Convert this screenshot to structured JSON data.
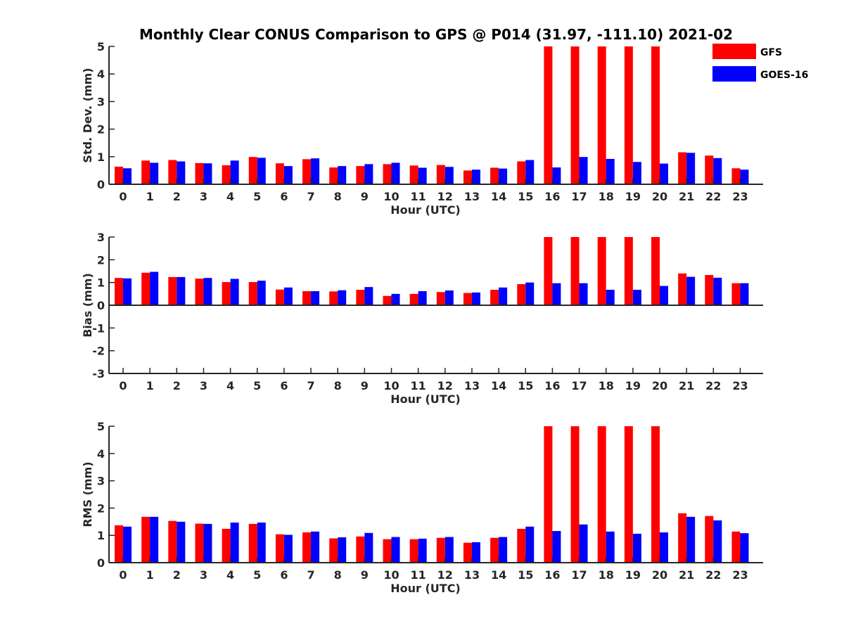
{
  "title": "Monthly Clear CONUS Comparison to GPS @ P014 (31.97, -111.10) 2021-02",
  "colors": {
    "GFS": "#ff0000",
    "GOES-16": "#0000ff",
    "axis": "#262626"
  },
  "legend": {
    "placement": "top-right",
    "entries": [
      "GFS",
      "GOES-16"
    ]
  },
  "chart_data": [
    {
      "type": "bar",
      "xlabel": "Hour (UTC)",
      "ylabel": "Std. Dev. (mm)",
      "ylim": [
        0,
        5
      ],
      "yticks": [
        0,
        1,
        2,
        3,
        4,
        5
      ],
      "categories": [
        "0",
        "1",
        "2",
        "3",
        "4",
        "5",
        "6",
        "7",
        "8",
        "9",
        "10",
        "11",
        "12",
        "13",
        "14",
        "15",
        "16",
        "17",
        "18",
        "19",
        "20",
        "21",
        "22",
        "23"
      ],
      "series": [
        {
          "name": "GFS",
          "values": [
            0.64,
            0.86,
            0.88,
            0.77,
            0.69,
            0.99,
            0.76,
            0.91,
            0.61,
            0.66,
            0.73,
            0.68,
            0.7,
            0.5,
            0.6,
            0.83,
            5,
            5,
            5,
            5,
            5,
            1.16,
            1.04,
            0.58
          ]
        },
        {
          "name": "GOES-16",
          "values": [
            0.58,
            0.78,
            0.83,
            0.76,
            0.86,
            0.96,
            0.66,
            0.94,
            0.66,
            0.73,
            0.78,
            0.6,
            0.63,
            0.53,
            0.57,
            0.88,
            0.61,
            0.99,
            0.92,
            0.81,
            0.75,
            1.14,
            0.95,
            0.53
          ]
        }
      ]
    },
    {
      "type": "bar",
      "xlabel": "Hour (UTC)",
      "ylabel": "Bias (mm)",
      "ylim": [
        -3,
        3
      ],
      "yticks": [
        -3,
        -2,
        -1,
        0,
        1,
        2,
        3
      ],
      "categories": [
        "0",
        "1",
        "2",
        "3",
        "4",
        "5",
        "6",
        "7",
        "8",
        "9",
        "10",
        "11",
        "12",
        "13",
        "14",
        "15",
        "16",
        "17",
        "18",
        "19",
        "20",
        "21",
        "22",
        "23"
      ],
      "series": [
        {
          "name": "GFS",
          "values": [
            1.2,
            1.43,
            1.24,
            1.17,
            1.02,
            1.02,
            0.69,
            0.62,
            0.61,
            0.68,
            0.41,
            0.5,
            0.58,
            0.54,
            0.68,
            0.93,
            3,
            3,
            3,
            3,
            3,
            1.4,
            1.33,
            0.97
          ]
        },
        {
          "name": "GOES-16",
          "values": [
            1.18,
            1.47,
            1.24,
            1.2,
            1.16,
            1.08,
            0.78,
            0.62,
            0.66,
            0.8,
            0.5,
            0.62,
            0.65,
            0.56,
            0.78,
            1.0,
            0.97,
            0.97,
            0.68,
            0.68,
            0.85,
            1.25,
            1.21,
            0.97
          ]
        }
      ]
    },
    {
      "type": "bar",
      "xlabel": "Hour (UTC)",
      "ylabel": "RMS (mm)",
      "ylim": [
        0,
        5
      ],
      "yticks": [
        0,
        1,
        2,
        3,
        4,
        5
      ],
      "categories": [
        "0",
        "1",
        "2",
        "3",
        "4",
        "5",
        "6",
        "7",
        "8",
        "9",
        "10",
        "11",
        "12",
        "13",
        "14",
        "15",
        "16",
        "17",
        "18",
        "19",
        "20",
        "21",
        "22",
        "23"
      ],
      "series": [
        {
          "name": "GFS",
          "values": [
            1.37,
            1.68,
            1.53,
            1.43,
            1.24,
            1.42,
            1.04,
            1.11,
            0.89,
            0.96,
            0.86,
            0.86,
            0.91,
            0.73,
            0.91,
            1.24,
            5,
            5,
            5,
            5,
            5,
            1.81,
            1.71,
            1.14
          ]
        },
        {
          "name": "GOES-16",
          "values": [
            1.32,
            1.68,
            1.5,
            1.42,
            1.47,
            1.47,
            1.02,
            1.14,
            0.93,
            1.09,
            0.94,
            0.88,
            0.94,
            0.75,
            0.94,
            1.32,
            1.16,
            1.4,
            1.14,
            1.06,
            1.11,
            1.68,
            1.55,
            1.08
          ]
        }
      ]
    }
  ]
}
